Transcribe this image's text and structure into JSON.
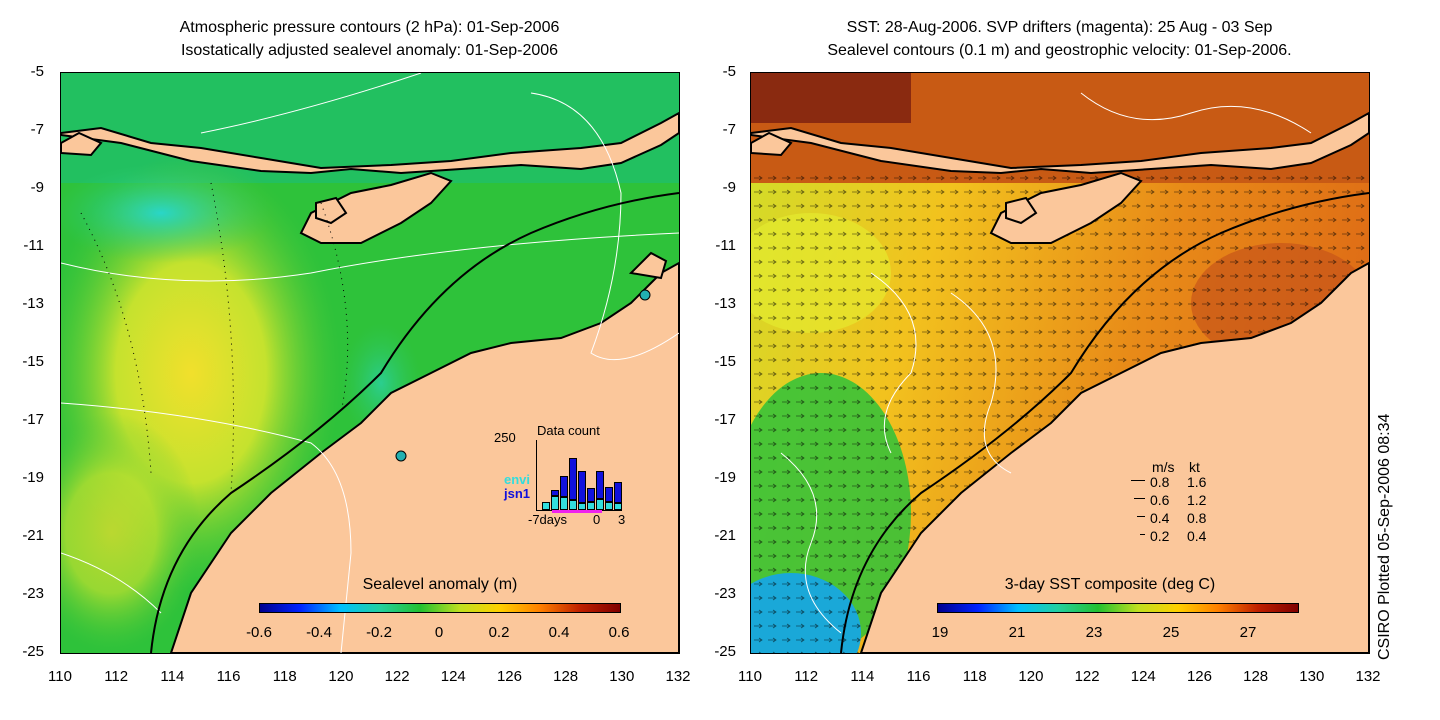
{
  "left_panel": {
    "title_line1": "Atmospheric pressure contours (2 hPa): 01-Sep-2006",
    "title_line2": "Isostatically adjusted sealevel anomaly: 01-Sep-2006",
    "colorbar_title": "Sealevel anomaly (m)",
    "colorbar_ticks": [
      "-0.6",
      "-0.4",
      "-0.2",
      "0",
      "0.2",
      "0.4",
      "0.6"
    ],
    "inset": {
      "title": "Data count",
      "ymax_label": "250",
      "legend": [
        {
          "label": "envi",
          "color": "#33dddd"
        },
        {
          "label": "jsn1",
          "color": "#1111dd"
        }
      ],
      "x_labels": [
        "-7days",
        "0",
        "3"
      ],
      "bars": [
        {
          "envi": 0.12,
          "jsn1": 0.0
        },
        {
          "envi": 0.2,
          "jsn1": 0.08
        },
        {
          "envi": 0.18,
          "jsn1": 0.3
        },
        {
          "envi": 0.14,
          "jsn1": 0.6
        },
        {
          "envi": 0.1,
          "jsn1": 0.45
        },
        {
          "envi": 0.12,
          "jsn1": 0.2
        },
        {
          "envi": 0.16,
          "jsn1": 0.4
        },
        {
          "envi": 0.12,
          "jsn1": 0.22
        },
        {
          "envi": 0.1,
          "jsn1": 0.3
        }
      ]
    }
  },
  "right_panel": {
    "title_line1": "SST: 28-Aug-2006. SVP drifters (magenta): 25 Aug - 03 Sep",
    "title_line2": "Sealevel contours (0.1 m) and geostrophic velocity: 01-Sep-2006.",
    "colorbar_title": "3-day SST composite (deg C)",
    "colorbar_ticks": [
      "19",
      "21",
      "23",
      "25",
      "27"
    ],
    "velocity_legend": {
      "header_ms": "m/s",
      "header_kt": "kt",
      "rows": [
        {
          "ms": "0.8",
          "kt": "1.6"
        },
        {
          "ms": "0.6",
          "kt": "1.2"
        },
        {
          "ms": "0.4",
          "kt": "0.8"
        },
        {
          "ms": "0.2",
          "kt": "0.4"
        }
      ]
    }
  },
  "y_axis_labels": [
    "-5",
    "-7",
    "-9",
    "-11",
    "-13",
    "-15",
    "-17",
    "-19",
    "-21",
    "-23",
    "-25"
  ],
  "x_axis_labels": [
    "110",
    "112",
    "114",
    "116",
    "118",
    "120",
    "122",
    "124",
    "126",
    "128",
    "130",
    "132"
  ],
  "side_caption": "CSIRO Plotted 05-Sep-2006 08:34",
  "colors": {
    "land": "#fbc79b",
    "ocean_green": "#2ec23a",
    "sst_orange": "#e3781a"
  }
}
